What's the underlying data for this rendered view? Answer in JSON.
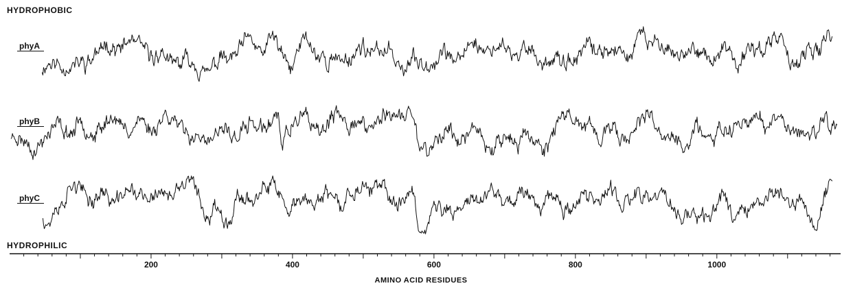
{
  "chart_data": {
    "type": "line",
    "top_label": "HYDROPHOBIC",
    "bottom_label": "HYDROPHILIC",
    "xlabel": "AMINO ACID RESIDUES",
    "xlim": [
      0,
      1175
    ],
    "xticks": [
      200,
      400,
      600,
      800,
      1000
    ],
    "series": [
      {
        "name": "phyA",
        "start": 46,
        "end": 1163,
        "seed": 11,
        "baseline": 0.0,
        "features": [
          [
            46,
            -0.6
          ],
          [
            100,
            -1.0
          ],
          [
            120,
            0.7
          ],
          [
            200,
            0.5
          ],
          [
            230,
            -0.7
          ],
          [
            290,
            -0.8
          ],
          [
            375,
            1.2
          ],
          [
            395,
            -1.0
          ],
          [
            418,
            0.8
          ],
          [
            450,
            -0.4
          ],
          [
            540,
            0.5
          ],
          [
            578,
            -1.3
          ],
          [
            600,
            -0.2
          ],
          [
            680,
            0.6
          ],
          [
            700,
            0.4
          ],
          [
            770,
            -0.5
          ],
          [
            905,
            1.0
          ],
          [
            1000,
            -0.5
          ],
          [
            1085,
            0.8
          ],
          [
            1135,
            -0.4
          ],
          [
            1160,
            1.0
          ]
        ]
      },
      {
        "name": "phyB",
        "start": 2,
        "end": 1170,
        "seed": 23,
        "baseline": 0.0,
        "features": [
          [
            2,
            0.1
          ],
          [
            30,
            -1.4
          ],
          [
            55,
            -0.9
          ],
          [
            80,
            0.2
          ],
          [
            230,
            0.7
          ],
          [
            290,
            -0.9
          ],
          [
            380,
            1.1
          ],
          [
            385,
            -1.2
          ],
          [
            400,
            0.9
          ],
          [
            440,
            0.3
          ],
          [
            570,
            1.1
          ],
          [
            578,
            -1.3
          ],
          [
            620,
            -0.4
          ],
          [
            760,
            -0.8
          ],
          [
            780,
            0.9
          ],
          [
            860,
            -0.6
          ],
          [
            905,
            0.9
          ],
          [
            950,
            -0.7
          ],
          [
            1050,
            0.6
          ],
          [
            1085,
            0.9
          ],
          [
            1130,
            -0.8
          ],
          [
            1155,
            1.2
          ],
          [
            1170,
            0.3
          ]
        ]
      },
      {
        "name": "phyC",
        "start": 47,
        "end": 1163,
        "seed": 37,
        "baseline": 0.0,
        "features": [
          [
            47,
            -0.8
          ],
          [
            55,
            -1.4
          ],
          [
            80,
            0.7
          ],
          [
            130,
            0.8
          ],
          [
            245,
            0.9
          ],
          [
            260,
            1.3
          ],
          [
            280,
            -0.6
          ],
          [
            385,
            1.1
          ],
          [
            395,
            -1.1
          ],
          [
            410,
            0.5
          ],
          [
            570,
            1.0
          ],
          [
            578,
            -1.5
          ],
          [
            640,
            0.5
          ],
          [
            700,
            0.9
          ],
          [
            830,
            0.6
          ],
          [
            920,
            0.8
          ],
          [
            950,
            -1.0
          ],
          [
            990,
            -0.5
          ],
          [
            1080,
            0.9
          ],
          [
            1100,
            0.6
          ],
          [
            1145,
            -0.6
          ],
          [
            1160,
            1.3
          ]
        ]
      }
    ]
  }
}
